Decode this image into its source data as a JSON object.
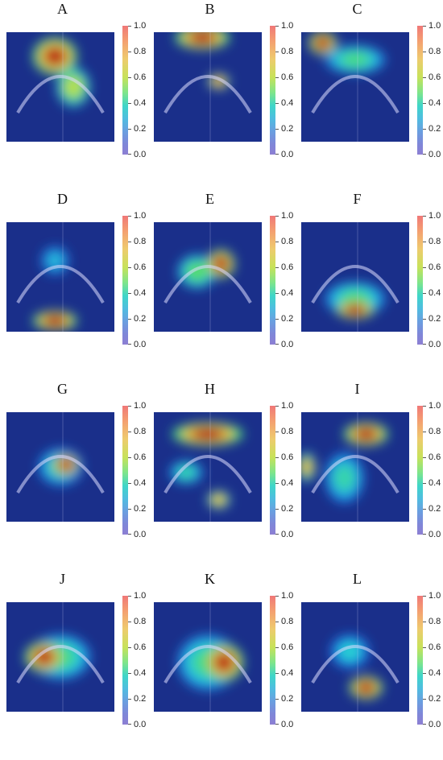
{
  "colorbar": {
    "ticks": [
      "1.0",
      "0.8",
      "0.6",
      "0.4",
      "0.2",
      "0.0"
    ]
  },
  "panels": [
    {
      "letter": "A",
      "hot": [
        [
          0.45,
          0.22,
          0.35,
          0.28,
          1.0
        ],
        [
          0.62,
          0.5,
          0.25,
          0.3,
          0.7
        ]
      ]
    },
    {
      "letter": "B",
      "hot": [
        [
          0.45,
          0.05,
          0.45,
          0.15,
          1.0
        ],
        [
          0.6,
          0.45,
          0.14,
          0.08,
          0.85
        ]
      ]
    },
    {
      "letter": "C",
      "hot": [
        [
          0.2,
          0.1,
          0.2,
          0.15,
          1.0
        ],
        [
          0.5,
          0.25,
          0.5,
          0.2,
          0.55
        ]
      ]
    },
    {
      "letter": "D",
      "hot": [
        [
          0.45,
          0.9,
          0.35,
          0.12,
          1.0
        ],
        [
          0.45,
          0.35,
          0.2,
          0.2,
          0.4
        ]
      ]
    },
    {
      "letter": "E",
      "hot": [
        [
          0.62,
          0.38,
          0.2,
          0.2,
          1.0
        ],
        [
          0.4,
          0.45,
          0.3,
          0.25,
          0.6
        ]
      ]
    },
    {
      "letter": "F",
      "hot": [
        [
          0.5,
          0.8,
          0.3,
          0.1,
          1.0
        ],
        [
          0.5,
          0.7,
          0.5,
          0.25,
          0.55
        ]
      ]
    },
    {
      "letter": "G",
      "hot": [
        [
          0.55,
          0.48,
          0.18,
          0.14,
          1.0
        ],
        [
          0.5,
          0.5,
          0.35,
          0.28,
          0.5
        ]
      ]
    },
    {
      "letter": "H",
      "hot": [
        [
          0.5,
          0.2,
          0.6,
          0.15,
          1.0
        ],
        [
          0.6,
          0.8,
          0.15,
          0.1,
          0.8
        ],
        [
          0.3,
          0.55,
          0.25,
          0.15,
          0.5
        ]
      ]
    },
    {
      "letter": "I",
      "hot": [
        [
          0.6,
          0.2,
          0.35,
          0.15,
          1.0
        ],
        [
          0.05,
          0.5,
          0.1,
          0.2,
          0.8
        ],
        [
          0.4,
          0.6,
          0.3,
          0.4,
          0.5
        ]
      ]
    },
    {
      "letter": "J",
      "hot": [
        [
          0.35,
          0.5,
          0.3,
          0.22,
          1.0
        ],
        [
          0.5,
          0.5,
          0.5,
          0.35,
          0.55
        ]
      ]
    },
    {
      "letter": "K",
      "hot": [
        [
          0.65,
          0.55,
          0.3,
          0.28,
          1.0
        ],
        [
          0.5,
          0.55,
          0.5,
          0.45,
          0.55
        ]
      ]
    },
    {
      "letter": "L",
      "hot": [
        [
          0.6,
          0.78,
          0.25,
          0.15,
          1.0
        ],
        [
          0.45,
          0.45,
          0.3,
          0.25,
          0.45
        ]
      ]
    }
  ]
}
